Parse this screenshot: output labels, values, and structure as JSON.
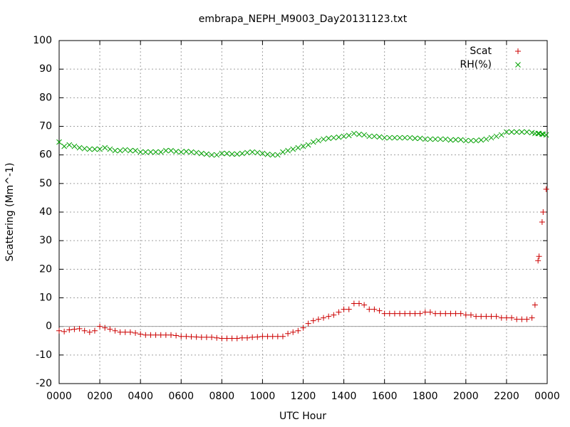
{
  "chart_data": {
    "type": "scatter",
    "title": "embrapa_NEPH_M9003_Day20131123.txt",
    "xlabel": "UTC Hour",
    "ylabel": "Scattering (Mm^-1)",
    "legend": "top-right",
    "grid": true,
    "xlim": [
      0,
      24
    ],
    "ylim": [
      -20,
      100
    ],
    "xticks": [
      {
        "value": 0,
        "label": "0000"
      },
      {
        "value": 2,
        "label": "0200"
      },
      {
        "value": 4,
        "label": "0400"
      },
      {
        "value": 6,
        "label": "0600"
      },
      {
        "value": 8,
        "label": "0800"
      },
      {
        "value": 10,
        "label": "1000"
      },
      {
        "value": 12,
        "label": "1200"
      },
      {
        "value": 14,
        "label": "1400"
      },
      {
        "value": 16,
        "label": "1600"
      },
      {
        "value": 18,
        "label": "1800"
      },
      {
        "value": 20,
        "label": "2000"
      },
      {
        "value": 22,
        "label": "2200"
      },
      {
        "value": 24,
        "label": "0000"
      }
    ],
    "yticks": [
      -20,
      -10,
      0,
      10,
      20,
      30,
      40,
      50,
      60,
      70,
      80,
      90,
      100
    ],
    "x": [
      0,
      0.25,
      0.5,
      0.75,
      1,
      1.25,
      1.5,
      1.75,
      2,
      2.25,
      2.5,
      2.75,
      3,
      3.25,
      3.5,
      3.75,
      4,
      4.25,
      4.5,
      4.75,
      5,
      5.25,
      5.5,
      5.75,
      6,
      6.25,
      6.5,
      6.75,
      7,
      7.25,
      7.5,
      7.75,
      8,
      8.25,
      8.5,
      8.75,
      9,
      9.25,
      9.5,
      9.75,
      10,
      10.25,
      10.5,
      10.75,
      11,
      11.25,
      11.5,
      11.75,
      12,
      12.25,
      12.5,
      12.75,
      13,
      13.25,
      13.5,
      13.75,
      14,
      14.25,
      14.5,
      14.75,
      15,
      15.25,
      15.5,
      15.75,
      16,
      16.25,
      16.5,
      16.75,
      17,
      17.25,
      17.5,
      17.75,
      18,
      18.25,
      18.5,
      18.75,
      19,
      19.25,
      19.5,
      19.75,
      20,
      20.25,
      20.5,
      20.75,
      21,
      21.25,
      21.5,
      21.75,
      22,
      22.25,
      22.5,
      22.75,
      23,
      23.25,
      23.4,
      23.55,
      23.6,
      23.75,
      23.8,
      23.95
    ],
    "series": [
      {
        "name": "Scat",
        "color": "#cc0000",
        "marker": "+",
        "values": [
          -1.5,
          -1.8,
          -1.2,
          -1,
          -0.8,
          -1.5,
          -2,
          -1.5,
          0,
          -0.5,
          -1,
          -1.5,
          -2,
          -2,
          -2,
          -2.3,
          -2.7,
          -3,
          -3,
          -3,
          -3,
          -3,
          -3,
          -3.2,
          -3.5,
          -3.5,
          -3.6,
          -3.7,
          -3.8,
          -3.8,
          -3.8,
          -4,
          -4.2,
          -4.2,
          -4.2,
          -4.2,
          -4,
          -4,
          -3.8,
          -3.7,
          -3.5,
          -3.5,
          -3.5,
          -3.5,
          -3.5,
          -2.5,
          -2,
          -1.5,
          -0.5,
          1,
          2,
          2.5,
          3,
          3.5,
          4,
          5,
          6,
          6,
          8,
          8,
          7.5,
          6,
          6,
          5.5,
          4.5,
          4.5,
          4.5,
          4.5,
          4.5,
          4.5,
          4.5,
          4.5,
          5,
          5,
          4.5,
          4.5,
          4.5,
          4.5,
          4.5,
          4.5,
          4,
          4,
          3.5,
          3.5,
          3.5,
          3.5,
          3.5,
          3,
          3,
          3,
          2.5,
          2.5,
          2.5,
          3,
          7.5,
          23,
          24.5,
          36.5,
          40,
          48
        ]
      },
      {
        "name": "RH(%)",
        "color": "#00a000",
        "marker": "x",
        "values": [
          64.5,
          63,
          63.5,
          63,
          62.5,
          62.2,
          62,
          62,
          62,
          62.5,
          62,
          61.5,
          61.5,
          61.8,
          61.5,
          61.5,
          61,
          61,
          61,
          61,
          61,
          61.5,
          61.5,
          61.2,
          61,
          61.2,
          61,
          60.8,
          60.5,
          60.3,
          60,
          60,
          60.5,
          60.5,
          60.3,
          60.3,
          60.5,
          60.8,
          61,
          60.8,
          60.5,
          60.2,
          60,
          60,
          61,
          61.5,
          62,
          62.5,
          63,
          63.5,
          64.5,
          65,
          65.5,
          65.8,
          66,
          66.2,
          66.5,
          66.8,
          67.5,
          67.2,
          67,
          66.5,
          66.5,
          66.3,
          66,
          66,
          66,
          66,
          66,
          66,
          65.8,
          65.8,
          65.5,
          65.5,
          65.5,
          65.5,
          65.5,
          65.2,
          65.3,
          65.3,
          65,
          65,
          65,
          65.2,
          65.5,
          66,
          66.5,
          67,
          68,
          68,
          68,
          68,
          68,
          67.8,
          67.5,
          67.5,
          67.5,
          67.3,
          67.2,
          67
        ]
      }
    ]
  }
}
